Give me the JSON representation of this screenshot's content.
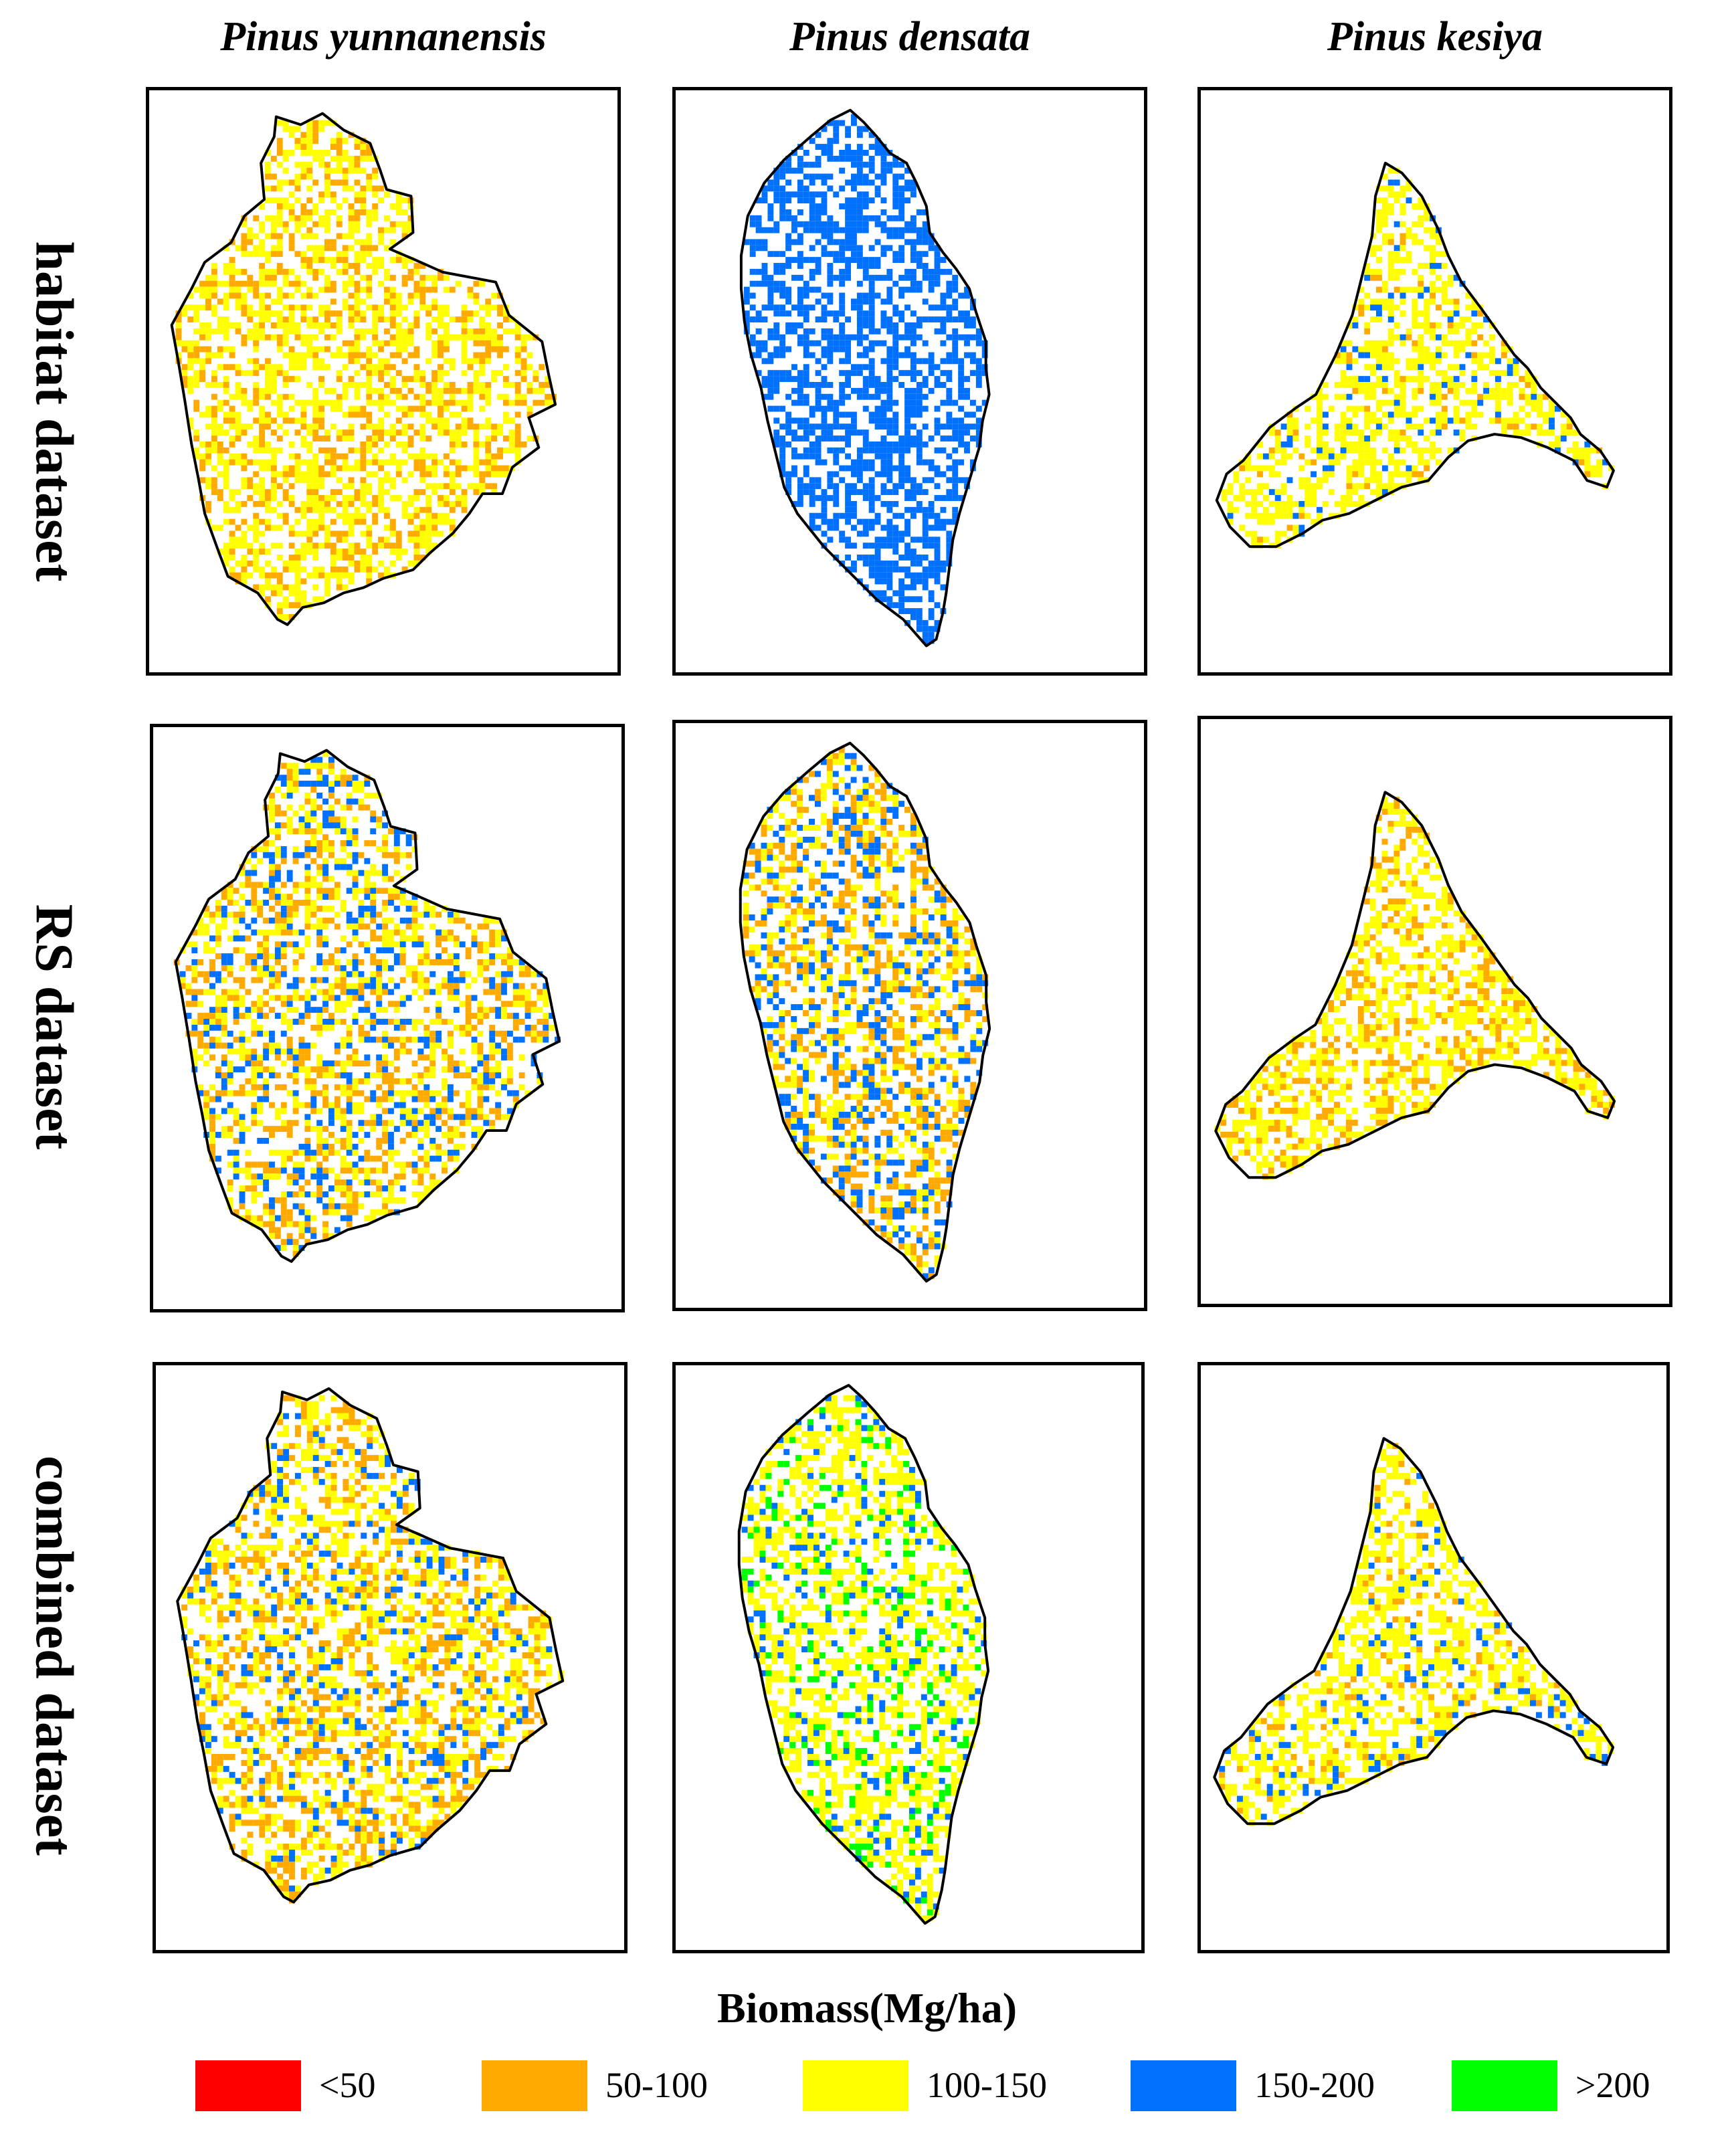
{
  "columns": [
    "Pinus yunnanensis",
    "Pinus densata",
    "Pinus kesiya"
  ],
  "rows": [
    "habitat dataset",
    "RS dataset",
    "combined dataset"
  ],
  "legend": {
    "title": "Biomass(Mg/ha)",
    "classes": [
      {
        "label": "<50",
        "color": "#ff0000"
      },
      {
        "label": "50-100",
        "color": "#ffaa00"
      },
      {
        "label": "100-150",
        "color": "#ffff00"
      },
      {
        "label": "150-200",
        "color": "#0070ff"
      },
      {
        "label": ">200",
        "color": "#00ff00"
      }
    ]
  },
  "panels": [
    {
      "species": "Pinus yunnanensis",
      "dataset": "habitat dataset",
      "mix": [
        0,
        0.35,
        0.65,
        0,
        0
      ]
    },
    {
      "species": "Pinus densata",
      "dataset": "habitat dataset",
      "mix": [
        0,
        0,
        0,
        1,
        0
      ]
    },
    {
      "species": "Pinus kesiya",
      "dataset": "habitat dataset",
      "mix": [
        0,
        0.08,
        0.8,
        0.12,
        0
      ]
    },
    {
      "species": "Pinus yunnanensis",
      "dataset": "RS dataset",
      "mix": [
        0,
        0.35,
        0.4,
        0.25,
        0
      ]
    },
    {
      "species": "Pinus densata",
      "dataset": "RS dataset",
      "mix": [
        0,
        0.35,
        0.35,
        0.3,
        0
      ]
    },
    {
      "species": "Pinus kesiya",
      "dataset": "RS dataset",
      "mix": [
        0,
        0.35,
        0.65,
        0,
        0
      ]
    },
    {
      "species": "Pinus yunnanensis",
      "dataset": "combined dataset",
      "mix": [
        0,
        0.35,
        0.5,
        0.15,
        0
      ]
    },
    {
      "species": "Pinus densata",
      "dataset": "combined dataset",
      "mix": [
        0,
        0,
        0.7,
        0.12,
        0.18
      ]
    },
    {
      "species": "Pinus kesiya",
      "dataset": "combined dataset",
      "mix": [
        0,
        0.12,
        0.75,
        0.13,
        0
      ]
    }
  ]
}
